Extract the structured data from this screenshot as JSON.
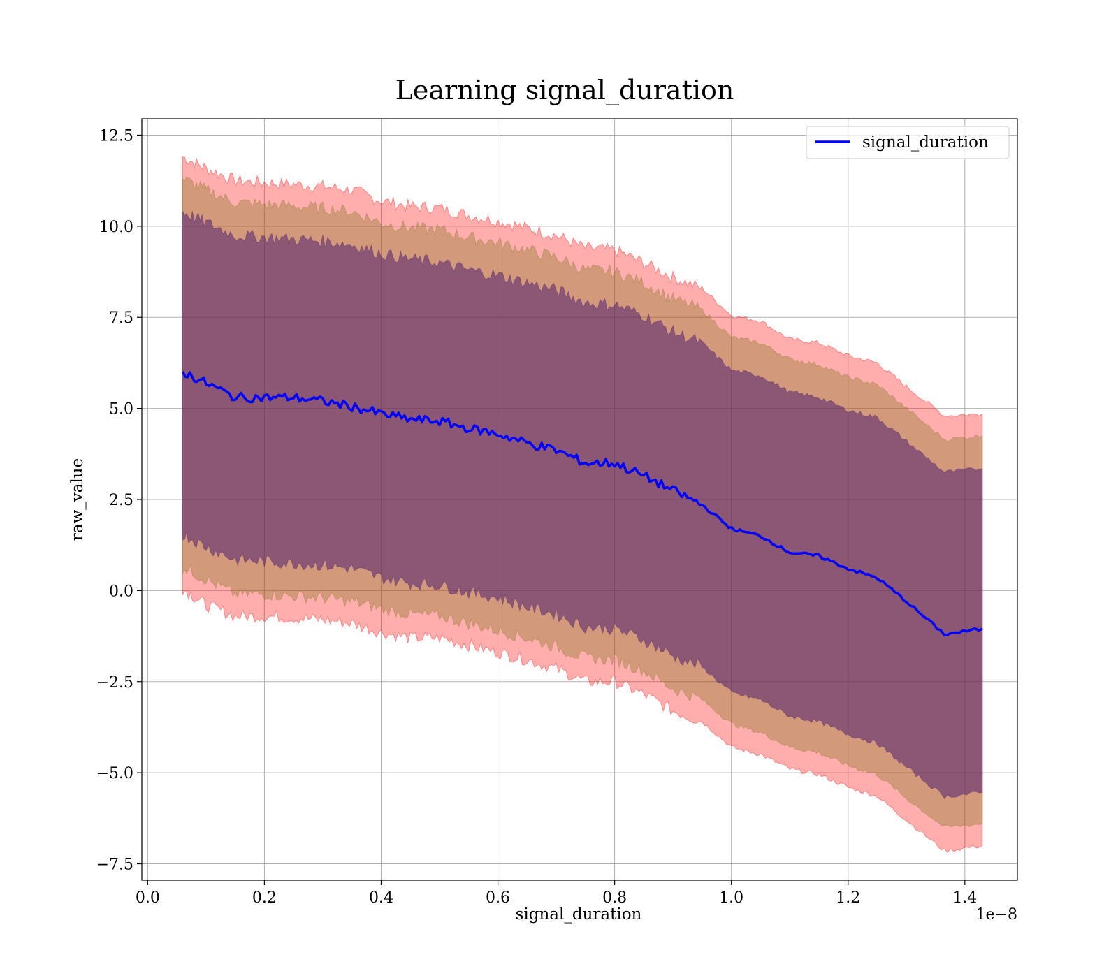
{
  "chart_data": {
    "type": "line",
    "title": "Learning signal_duration",
    "xlabel": "signal_duration",
    "ylabel": "raw_value",
    "x_offset_label": "1e−8",
    "xlim": [
      -0.01,
      1.49
    ],
    "ylim": [
      -7.95,
      12.95
    ],
    "x_ticks": [
      0.0,
      0.2,
      0.4,
      0.6,
      0.8,
      1.0,
      1.2,
      1.4
    ],
    "x_tick_labels": [
      "0.0",
      "0.2",
      "0.4",
      "0.6",
      "0.8",
      "1.0",
      "1.2",
      "1.4"
    ],
    "y_ticks": [
      -7.5,
      -5.0,
      -2.5,
      0.0,
      2.5,
      5.0,
      7.5,
      10.0,
      12.5
    ],
    "y_tick_labels": [
      "−7.5",
      "−5.0",
      "−2.5",
      "0.0",
      "2.5",
      "5.0",
      "7.5",
      "10.0",
      "12.5"
    ],
    "grid": true,
    "legend_position": "top-right",
    "x": [
      0.06,
      0.1,
      0.15,
      0.2,
      0.25,
      0.3,
      0.35,
      0.4,
      0.45,
      0.5,
      0.55,
      0.6,
      0.65,
      0.7,
      0.75,
      0.8,
      0.85,
      0.9,
      0.95,
      1.0,
      1.05,
      1.1,
      1.15,
      1.2,
      1.25,
      1.3,
      1.365,
      1.43
    ],
    "series": [
      {
        "name": "signal_duration",
        "color": "#0000ff",
        "values": [
          6.0,
          5.7,
          5.3,
          5.3,
          5.3,
          5.2,
          5.05,
          4.85,
          4.7,
          4.65,
          4.45,
          4.3,
          4.05,
          3.85,
          3.5,
          3.5,
          3.15,
          2.75,
          2.35,
          1.7,
          1.5,
          1.05,
          0.95,
          0.6,
          0.35,
          -0.3,
          -1.2,
          -1.05
        ]
      }
    ],
    "bands": [
      {
        "color": "#ff0000",
        "opacity": 0.32,
        "lower": [
          0.05,
          -0.4,
          -0.7,
          -0.7,
          -0.75,
          -0.8,
          -0.9,
          -1.15,
          -1.3,
          -1.3,
          -1.5,
          -1.7,
          -1.9,
          -2.15,
          -2.5,
          -2.5,
          -2.85,
          -3.3,
          -3.6,
          -4.3,
          -4.5,
          -4.9,
          -5.05,
          -5.4,
          -5.65,
          -6.3,
          -7.15,
          -7.0
        ],
        "upper": [
          11.9,
          11.6,
          11.25,
          11.2,
          11.15,
          11.1,
          11.0,
          10.7,
          10.55,
          10.5,
          10.3,
          10.15,
          9.95,
          9.75,
          9.4,
          9.35,
          9.0,
          8.6,
          8.3,
          7.55,
          7.4,
          6.9,
          6.8,
          6.45,
          6.25,
          5.6,
          4.8,
          4.85
        ]
      },
      {
        "color": "#8a7a2a",
        "opacity": 0.38,
        "lower": [
          0.65,
          0.3,
          -0.1,
          -0.1,
          -0.15,
          -0.2,
          -0.3,
          -0.5,
          -0.65,
          -0.7,
          -0.9,
          -1.1,
          -1.3,
          -1.55,
          -1.85,
          -1.9,
          -2.2,
          -2.7,
          -3.0,
          -3.65,
          -3.9,
          -4.3,
          -4.45,
          -4.8,
          -5.05,
          -5.7,
          -6.5,
          -6.4
        ],
        "upper": [
          11.3,
          11.0,
          10.65,
          10.6,
          10.55,
          10.5,
          10.4,
          10.1,
          9.95,
          9.9,
          9.7,
          9.55,
          9.35,
          9.15,
          8.8,
          8.75,
          8.45,
          8.0,
          7.7,
          6.95,
          6.8,
          6.35,
          6.2,
          5.85,
          5.65,
          5.0,
          4.15,
          4.25
        ]
      },
      {
        "color": "#502070",
        "opacity": 0.55,
        "lower": [
          1.55,
          1.2,
          0.85,
          0.8,
          0.75,
          0.7,
          0.6,
          0.35,
          0.2,
          0.15,
          -0.05,
          -0.2,
          -0.45,
          -0.65,
          -1.0,
          -1.05,
          -1.35,
          -1.8,
          -2.1,
          -2.8,
          -3.0,
          -3.45,
          -3.6,
          -3.95,
          -4.2,
          -4.85,
          -5.65,
          -5.55
        ],
        "upper": [
          10.4,
          10.1,
          9.75,
          9.7,
          9.65,
          9.6,
          9.5,
          9.25,
          9.1,
          9.0,
          8.8,
          8.65,
          8.45,
          8.25,
          7.9,
          7.85,
          7.55,
          7.1,
          6.8,
          6.05,
          5.9,
          5.45,
          5.3,
          4.95,
          4.75,
          4.1,
          3.25,
          3.35
        ]
      }
    ]
  }
}
